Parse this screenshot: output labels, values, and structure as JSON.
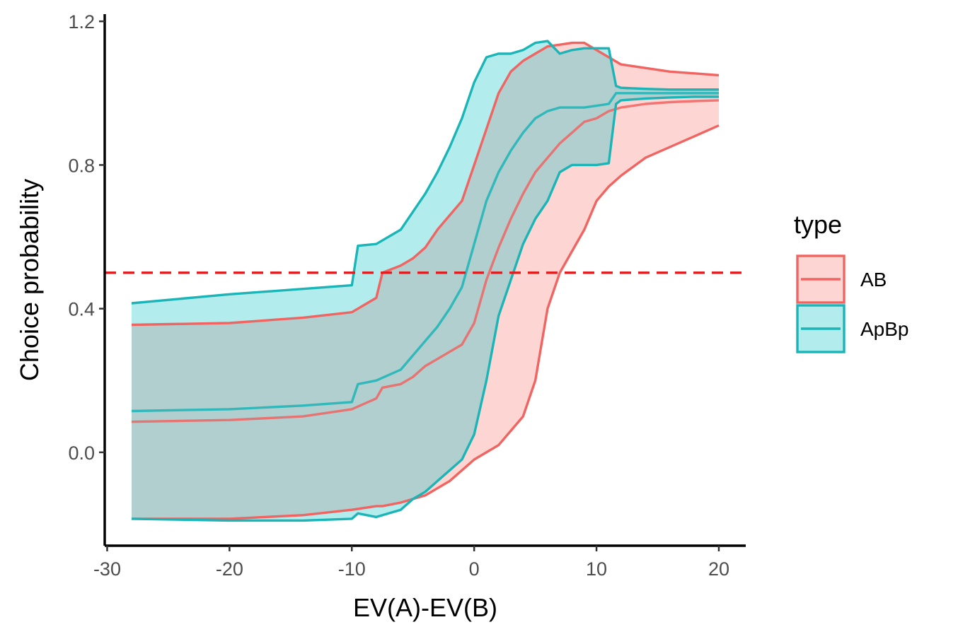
{
  "chart_data": {
    "type": "area",
    "title": "",
    "xlabel": "EV(A)-EV(B)",
    "ylabel": "Choice probability",
    "xlim": [
      -30.2,
      22.2
    ],
    "ylim": [
      -0.26,
      1.22
    ],
    "xticks": [
      -30,
      -20,
      -10,
      0,
      10,
      20
    ],
    "yticks": [
      0.0,
      0.4,
      0.8,
      1.2
    ],
    "xtick_labels": [
      "-30",
      "-20",
      "-10",
      "0",
      "10",
      "20"
    ],
    "ytick_labels": [
      "0.0",
      "0.4",
      "0.8",
      "1.2"
    ],
    "grid": false,
    "legend": {
      "title": "type",
      "position": "right"
    },
    "reference_line": {
      "y": 0.5,
      "style": "dashed",
      "color": "#e31a1c"
    },
    "series": [
      {
        "name": "AB",
        "color": "#f06461",
        "fill": "#f8766d",
        "x": [
          -28,
          -20,
          -14,
          -10,
          -8,
          -7.5,
          -6,
          -5,
          -4,
          -3,
          -2,
          -1,
          0,
          1,
          2,
          3,
          4,
          5,
          6,
          7,
          8,
          9,
          10,
          11,
          12,
          14,
          16,
          18,
          20
        ],
        "lower": [
          -0.185,
          -0.185,
          -0.175,
          -0.16,
          -0.15,
          -0.15,
          -0.14,
          -0.13,
          -0.12,
          -0.1,
          -0.08,
          -0.05,
          -0.02,
          0.0,
          0.02,
          0.06,
          0.1,
          0.2,
          0.4,
          0.5,
          0.56,
          0.62,
          0.7,
          0.74,
          0.77,
          0.82,
          0.85,
          0.88,
          0.91
        ],
        "mean": [
          0.085,
          0.09,
          0.1,
          0.12,
          0.15,
          0.18,
          0.19,
          0.21,
          0.24,
          0.26,
          0.28,
          0.3,
          0.36,
          0.48,
          0.57,
          0.65,
          0.72,
          0.78,
          0.82,
          0.86,
          0.89,
          0.92,
          0.93,
          0.95,
          0.96,
          0.97,
          0.975,
          0.978,
          0.98
        ],
        "upper": [
          0.355,
          0.36,
          0.375,
          0.39,
          0.43,
          0.5,
          0.52,
          0.54,
          0.57,
          0.62,
          0.66,
          0.7,
          0.8,
          0.9,
          1.0,
          1.06,
          1.09,
          1.11,
          1.13,
          1.135,
          1.14,
          1.14,
          1.12,
          1.1,
          1.08,
          1.07,
          1.06,
          1.055,
          1.05
        ]
      },
      {
        "name": "ApBp",
        "color": "#1bb4b7",
        "fill": "#00bfc4",
        "x": [
          -28,
          -20,
          -14,
          -10,
          -9.5,
          -8,
          -6,
          -5,
          -4,
          -3,
          -2,
          -1,
          0,
          1,
          2,
          3,
          4,
          5,
          6,
          7,
          8,
          9,
          10,
          11,
          11.6,
          12,
          14,
          16,
          18,
          20
        ],
        "lower": [
          -0.185,
          -0.19,
          -0.19,
          -0.185,
          -0.17,
          -0.18,
          -0.16,
          -0.13,
          -0.11,
          -0.08,
          -0.05,
          -0.02,
          0.05,
          0.2,
          0.38,
          0.48,
          0.58,
          0.65,
          0.7,
          0.78,
          0.8,
          0.8,
          0.8,
          0.805,
          0.97,
          0.98,
          0.985,
          0.988,
          0.99,
          0.99
        ],
        "mean": [
          0.115,
          0.12,
          0.13,
          0.14,
          0.19,
          0.2,
          0.23,
          0.27,
          0.31,
          0.35,
          0.4,
          0.46,
          0.58,
          0.7,
          0.78,
          0.84,
          0.89,
          0.93,
          0.95,
          0.96,
          0.96,
          0.96,
          0.965,
          0.97,
          1.0,
          1.0,
          1.0,
          1.0,
          1.0,
          1.0
        ],
        "upper": [
          0.415,
          0.44,
          0.455,
          0.465,
          0.575,
          0.58,
          0.62,
          0.67,
          0.72,
          0.78,
          0.85,
          0.93,
          1.03,
          1.1,
          1.11,
          1.11,
          1.12,
          1.14,
          1.145,
          1.11,
          1.12,
          1.125,
          1.125,
          1.125,
          1.02,
          1.015,
          1.012,
          1.01,
          1.01,
          1.01
        ]
      }
    ]
  }
}
